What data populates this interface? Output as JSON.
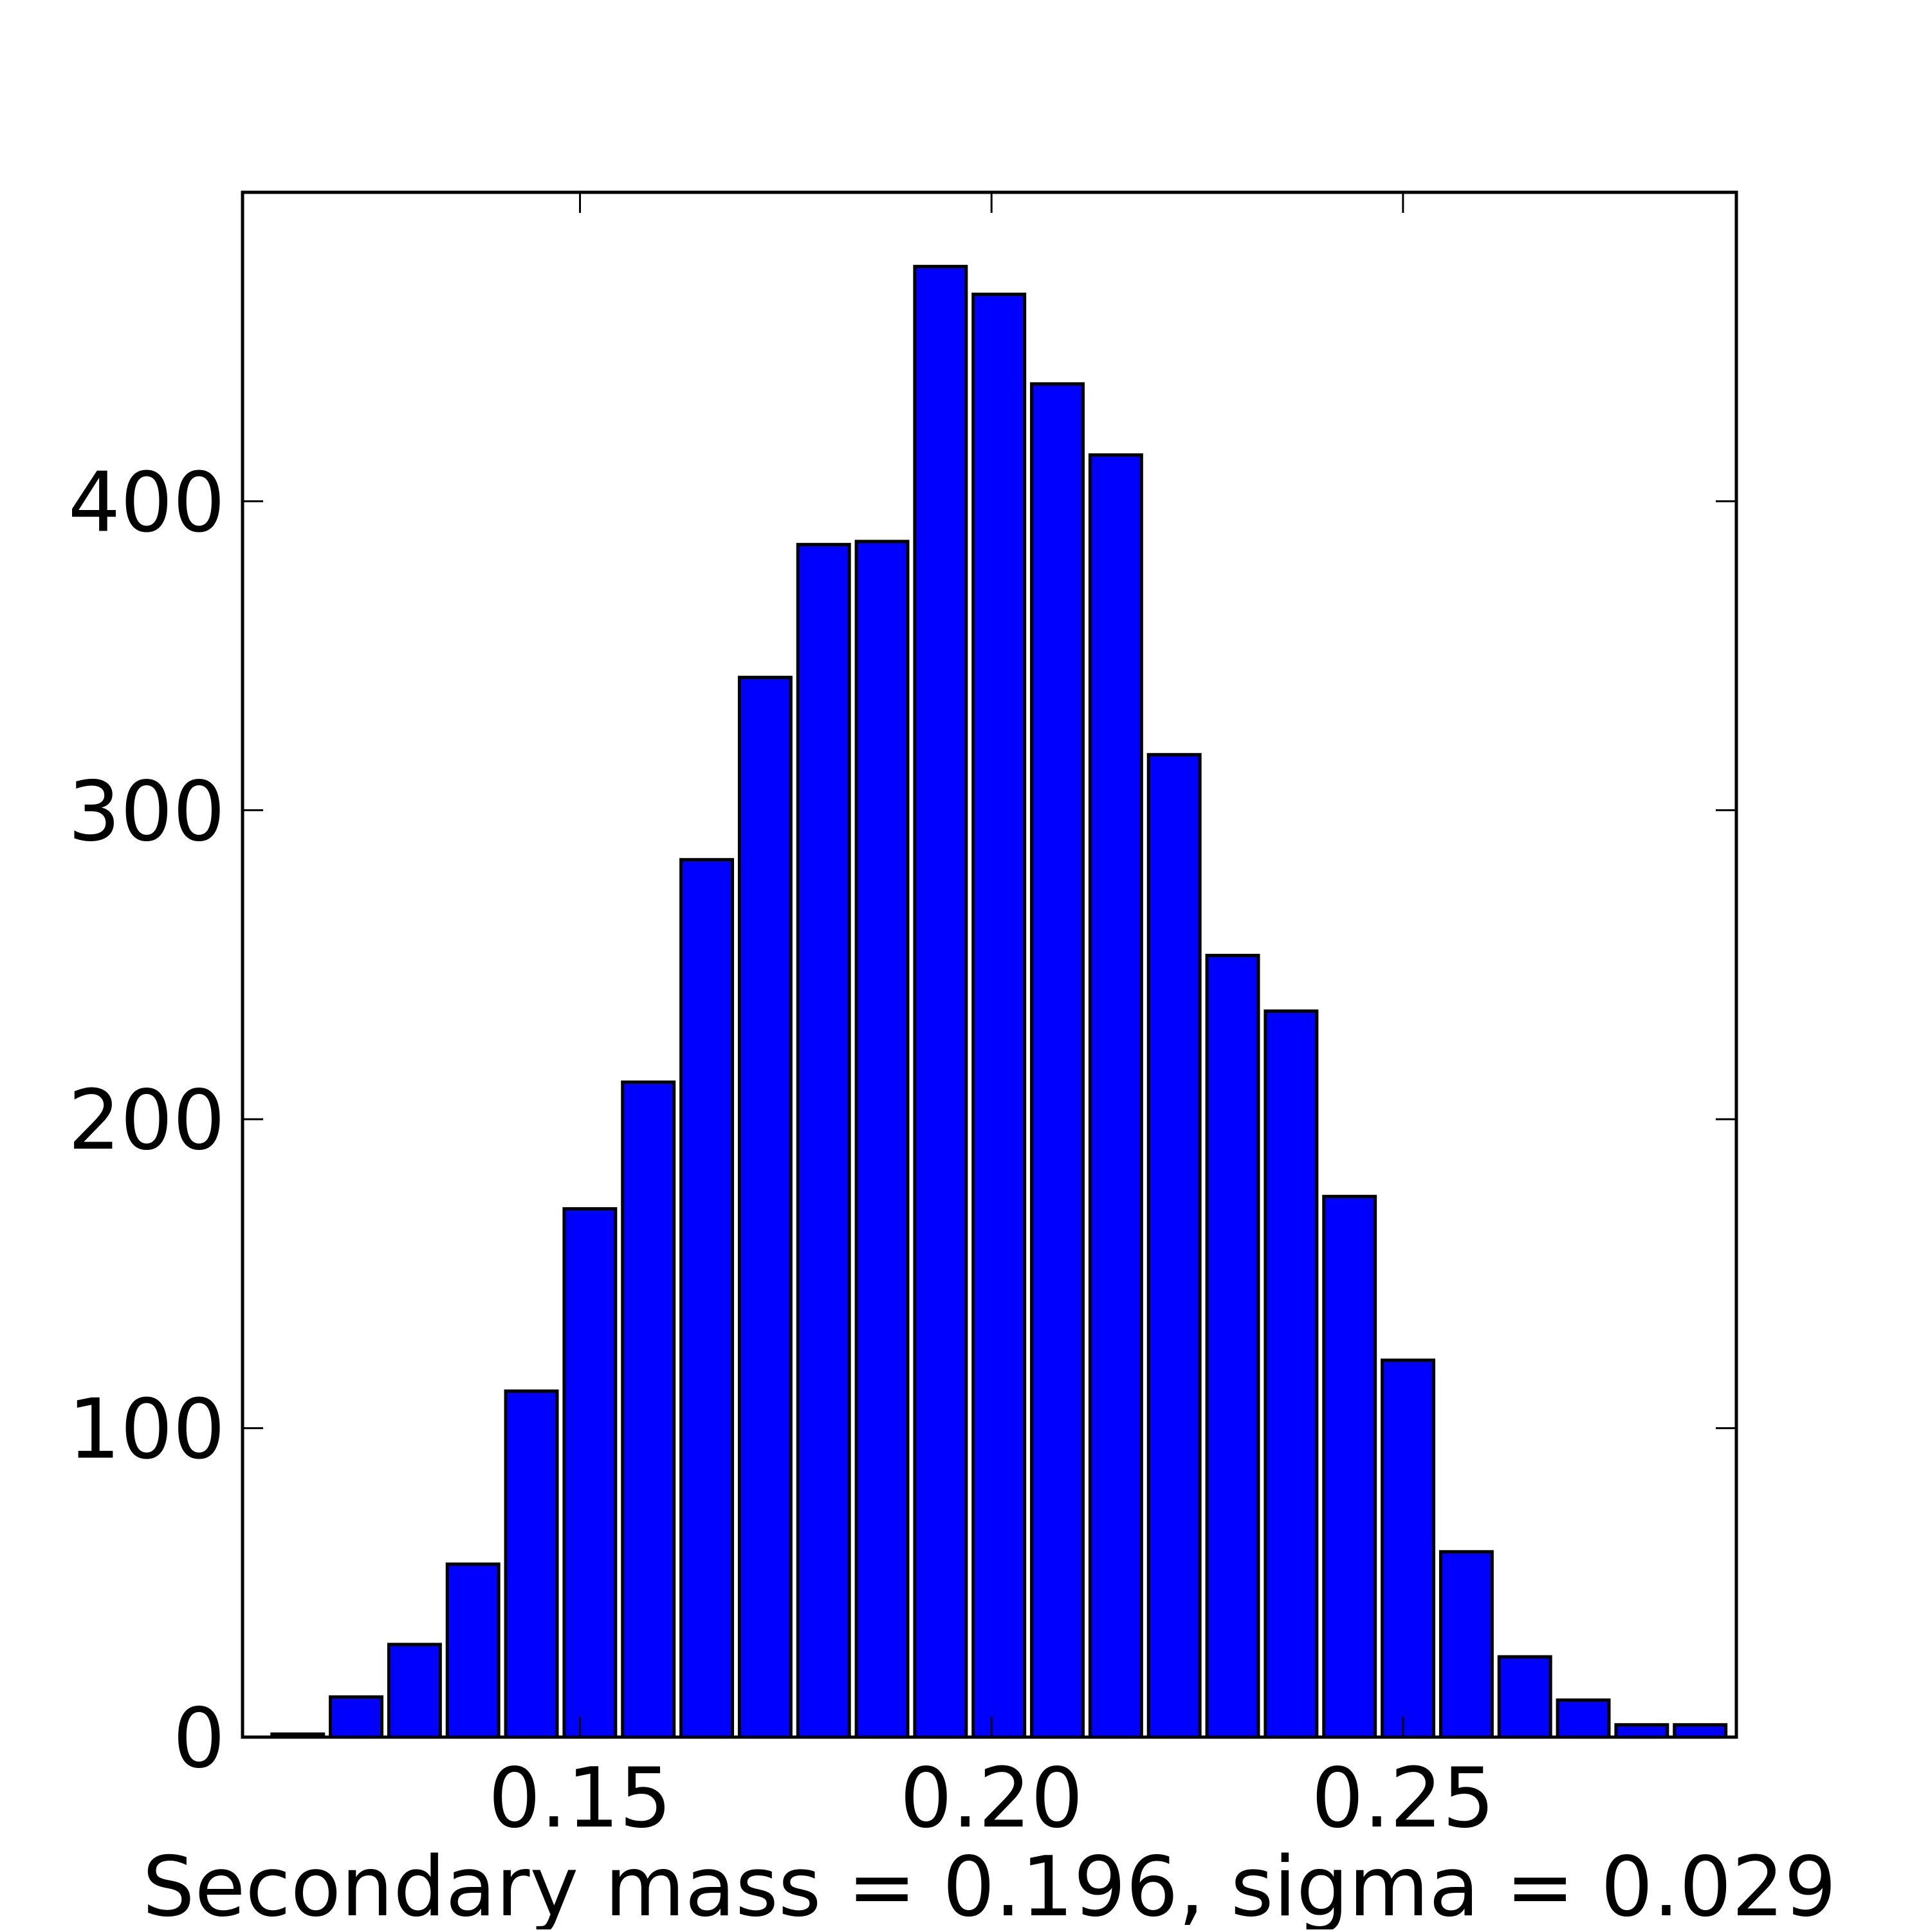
{
  "chart_data": {
    "type": "bar",
    "xlabel": "Secondary mass = 0.196, sigma = 0.029",
    "ylabel": "",
    "title": "",
    "xlim": [
      0.109,
      0.2905
    ],
    "ylim": [
      0,
      500
    ],
    "xticks": [
      {
        "value": 0.15,
        "label": "0.15"
      },
      {
        "value": 0.2,
        "label": "0.20"
      },
      {
        "value": 0.25,
        "label": "0.25"
      }
    ],
    "yticks": [
      {
        "value": 0,
        "label": "0"
      },
      {
        "value": 100,
        "label": "100"
      },
      {
        "value": 200,
        "label": "200"
      },
      {
        "value": 300,
        "label": "300"
      },
      {
        "value": 400,
        "label": "400"
      }
    ],
    "bin_width": 0.0071,
    "bar_width_fraction": 0.88,
    "bins": [
      {
        "x": 0.1157,
        "value": 1
      },
      {
        "x": 0.1228,
        "value": 13
      },
      {
        "x": 0.1299,
        "value": 30
      },
      {
        "x": 0.137,
        "value": 56
      },
      {
        "x": 0.1441,
        "value": 112
      },
      {
        "x": 0.1512,
        "value": 171
      },
      {
        "x": 0.1583,
        "value": 212
      },
      {
        "x": 0.1654,
        "value": 284
      },
      {
        "x": 0.1725,
        "value": 343
      },
      {
        "x": 0.1796,
        "value": 386
      },
      {
        "x": 0.1867,
        "value": 387
      },
      {
        "x": 0.1938,
        "value": 476
      },
      {
        "x": 0.2009,
        "value": 467
      },
      {
        "x": 0.208,
        "value": 438
      },
      {
        "x": 0.2151,
        "value": 415
      },
      {
        "x": 0.2222,
        "value": 318
      },
      {
        "x": 0.2293,
        "value": 253
      },
      {
        "x": 0.2364,
        "value": 235
      },
      {
        "x": 0.2435,
        "value": 175
      },
      {
        "x": 0.2506,
        "value": 122
      },
      {
        "x": 0.2577,
        "value": 60
      },
      {
        "x": 0.2648,
        "value": 26
      },
      {
        "x": 0.2719,
        "value": 12
      },
      {
        "x": 0.279,
        "value": 4
      },
      {
        "x": 0.2861,
        "value": 4
      }
    ],
    "bar_color": "#0000ff",
    "edge_color": "#000000",
    "grid": false,
    "legend": "none"
  }
}
